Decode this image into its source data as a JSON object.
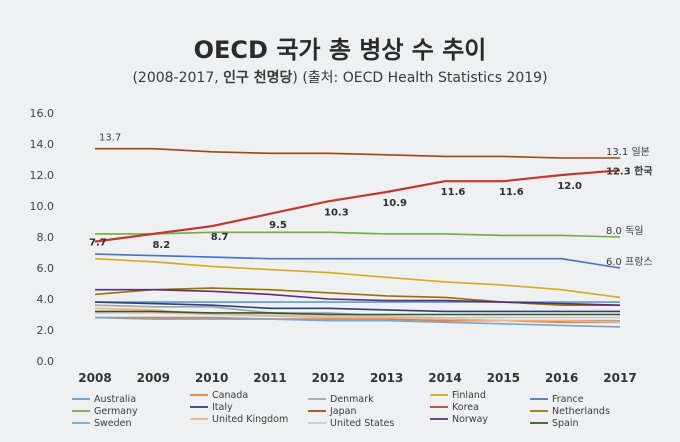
{
  "page": {
    "title": "OECD 국가 총 병상 수 추이",
    "subtitle_prefix": "(2008-2017, ",
    "subtitle_bold": "인구 천명당",
    "subtitle_suffix": ") (출처: OECD Health Statistics 2019)"
  },
  "chart_data": {
    "type": "line",
    "title": "OECD 국가 총 병상 수 추이",
    "subtitle": "(2008-2017, 인구 천명당) (출처: OECD Health Statistics 2019)",
    "x": [
      "2008",
      "2009",
      "2010",
      "2011",
      "2012",
      "2013",
      "2014",
      "2015",
      "2016",
      "2017"
    ],
    "ylim": [
      0,
      16
    ],
    "yticks": [
      "0.0",
      "2.0",
      "4.0",
      "6.0",
      "8.0",
      "10.0",
      "12.0",
      "14.0",
      "16.0"
    ],
    "grid": false,
    "legend_position": "bottom",
    "series": [
      {
        "name": "Australia",
        "color": "#5b9bd5",
        "values": [
          3.8,
          3.8,
          3.8,
          3.8,
          3.8,
          3.8,
          3.8,
          3.8,
          3.8,
          3.8
        ]
      },
      {
        "name": "Canada",
        "color": "#ed7d31",
        "values": [
          2.8,
          2.8,
          2.8,
          2.7,
          2.7,
          2.7,
          2.6,
          2.6,
          2.5,
          2.5
        ]
      },
      {
        "name": "Denmark",
        "color": "#a5a5a5",
        "values": [
          3.6,
          3.5,
          3.5,
          3.1,
          3.1,
          2.9,
          2.7,
          2.6,
          2.6,
          2.6
        ]
      },
      {
        "name": "Finland",
        "color": "#d9a81e",
        "values": [
          6.6,
          6.4,
          6.1,
          5.9,
          5.7,
          5.4,
          5.1,
          4.9,
          4.6,
          4.1
        ]
      },
      {
        "name": "France",
        "color": "#4472c4",
        "values": [
          6.9,
          6.8,
          6.7,
          6.6,
          6.6,
          6.6,
          6.6,
          6.6,
          6.6,
          6.0
        ]
      },
      {
        "name": "Germany",
        "color": "#70ad47",
        "values": [
          8.2,
          8.2,
          8.3,
          8.3,
          8.3,
          8.2,
          8.2,
          8.1,
          8.1,
          8.0
        ]
      },
      {
        "name": "Italy",
        "color": "#264478",
        "values": [
          3.8,
          3.7,
          3.6,
          3.4,
          3.4,
          3.3,
          3.2,
          3.2,
          3.2,
          3.2
        ]
      },
      {
        "name": "Japan",
        "color": "#9e480e",
        "values": [
          13.7,
          13.7,
          13.5,
          13.4,
          13.4,
          13.3,
          13.2,
          13.2,
          13.1,
          13.1
        ]
      },
      {
        "name": "Korea",
        "color": "#c0392b",
        "values": [
          7.7,
          8.2,
          8.7,
          9.5,
          10.3,
          10.9,
          11.6,
          11.6,
          12.0,
          12.3
        ]
      },
      {
        "name": "Netherlands",
        "color": "#997300",
        "values": [
          4.3,
          4.6,
          4.7,
          4.6,
          4.4,
          4.2,
          4.1,
          3.8,
          3.6,
          3.6
        ]
      },
      {
        "name": "Sweden",
        "color": "#6fa8dc",
        "values": [
          2.8,
          2.7,
          2.7,
          2.7,
          2.6,
          2.6,
          2.5,
          2.4,
          2.3,
          2.2
        ]
      },
      {
        "name": "United Kingdom",
        "color": "#f4b183",
        "values": [
          3.4,
          3.3,
          3.0,
          2.9,
          2.8,
          2.8,
          2.7,
          2.6,
          2.6,
          2.5
        ]
      },
      {
        "name": "United States",
        "color": "#c9c9c9",
        "values": [
          3.1,
          3.1,
          3.0,
          3.0,
          2.9,
          2.9,
          2.8,
          2.8,
          2.8,
          2.8
        ]
      },
      {
        "name": "Norway",
        "color": "#5a2d82",
        "values": [
          4.6,
          4.6,
          4.5,
          4.3,
          4.0,
          3.9,
          3.9,
          3.8,
          3.7,
          3.6
        ]
      },
      {
        "name": "Spain",
        "color": "#375623",
        "values": [
          3.2,
          3.2,
          3.1,
          3.1,
          3.0,
          3.0,
          3.0,
          3.0,
          3.0,
          3.0
        ]
      }
    ],
    "data_labels": {
      "Korea": [
        "7.7",
        "8.2",
        "8.7",
        "9.5",
        "10.3",
        "10.9",
        "11.6",
        "11.6",
        "12.0",
        "12.3"
      ],
      "Japan_first": "13.7"
    },
    "annotations": [
      {
        "series": "Japan",
        "text": "13.1 일본"
      },
      {
        "series": "Korea",
        "value": "12.3",
        "text": " 한국"
      },
      {
        "series": "Germany",
        "text": "8.0 독일"
      },
      {
        "series": "France",
        "text": "6.0 프랑스"
      }
    ]
  }
}
